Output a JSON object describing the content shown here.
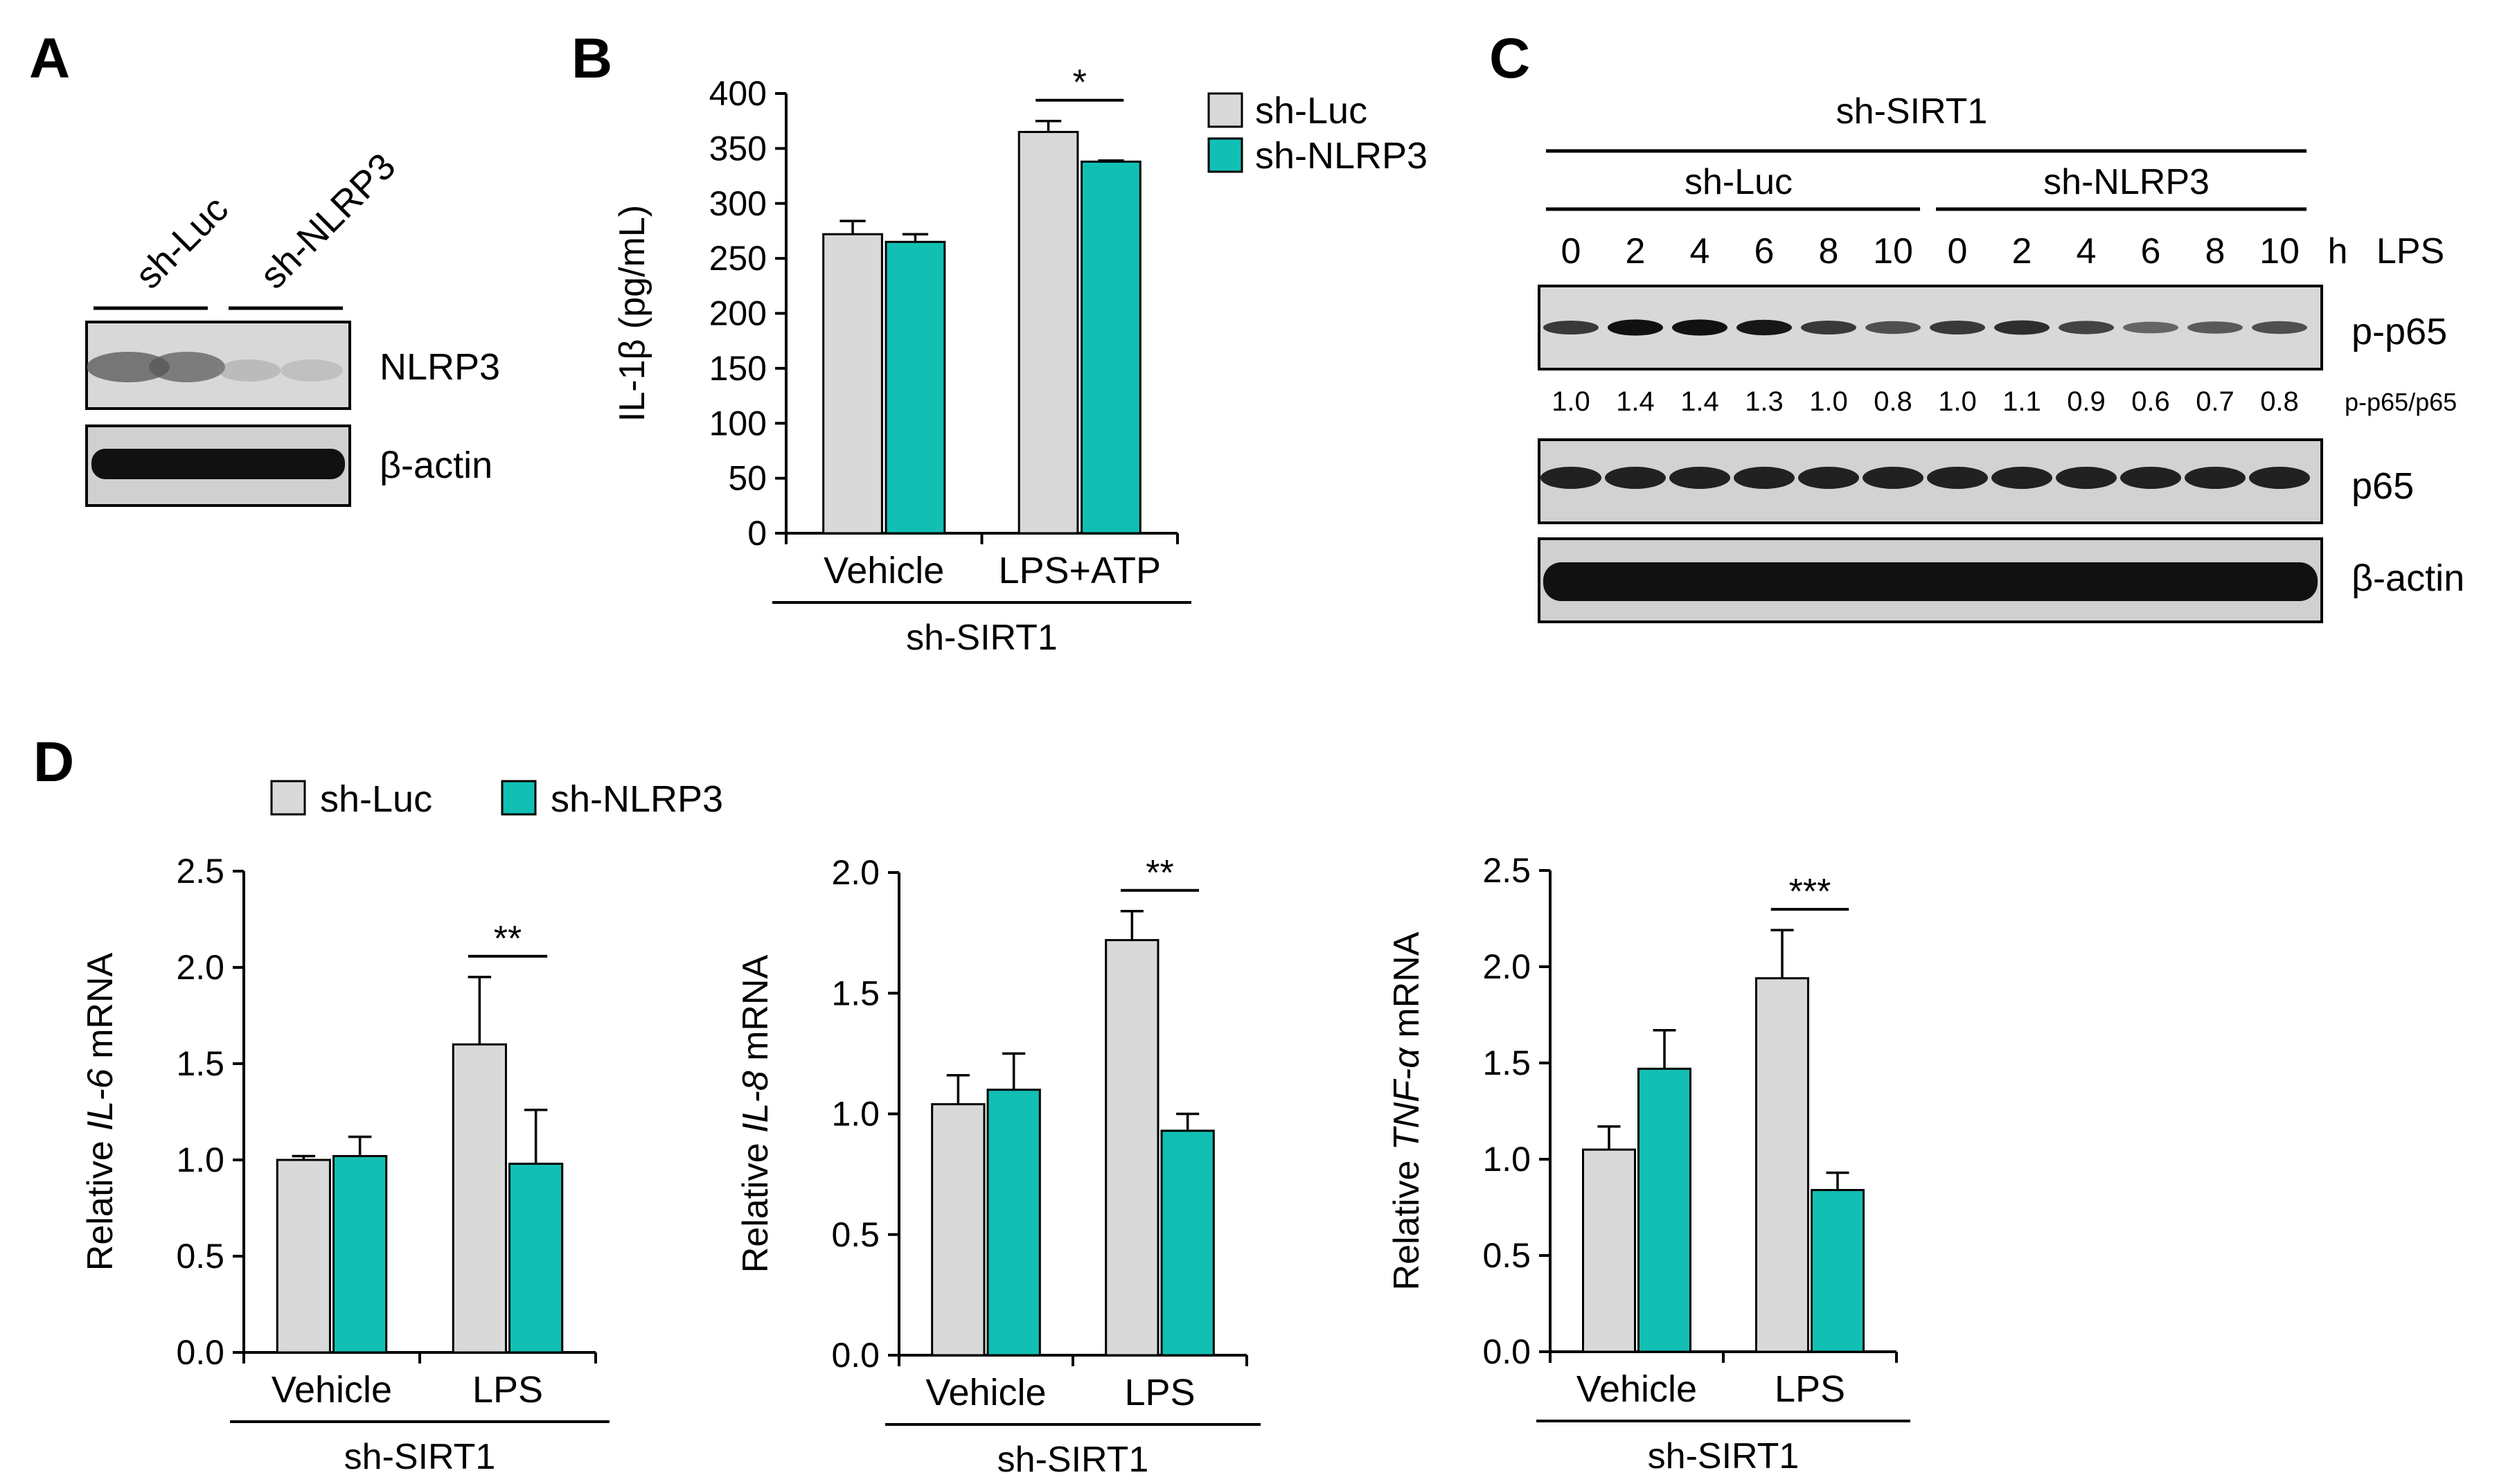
{
  "colors": {
    "luc": "#d9d9d9",
    "nlrp3": "#12bfb3",
    "axis": "#000000"
  },
  "panel_a": {
    "label": "A",
    "lanes": [
      "sh-Luc",
      "sh-NLRP3"
    ],
    "blots": [
      "NLRP3",
      "β-actin"
    ]
  },
  "panel_c": {
    "label": "C",
    "header": "sh-SIRT1",
    "groups": [
      "sh-Luc",
      "sh-NLRP3"
    ],
    "timepoints": [
      "0",
      "2",
      "4",
      "6",
      "8",
      "10",
      "0",
      "2",
      "4",
      "6",
      "8",
      "10"
    ],
    "unit": "h",
    "treatment": "LPS",
    "ratio_label": "p-p65/p65",
    "ratios": [
      "1.0",
      "1.4",
      "1.4",
      "1.3",
      "1.0",
      "0.8",
      "1.0",
      "1.1",
      "0.9",
      "0.6",
      "0.7",
      "0.8"
    ],
    "blots": [
      "p-p65",
      "p65",
      "β-actin"
    ]
  },
  "legend_d": {
    "label": "D",
    "items": [
      "sh-Luc",
      "sh-NLRP3"
    ]
  },
  "chart_data": [
    {
      "id": "B",
      "label": "B",
      "type": "bar",
      "categories": [
        "Vehicle",
        "LPS+ATP"
      ],
      "group_label": "sh-SIRT1",
      "ylabel": "IL-1β (pg/mL)",
      "ylabel_parts": [
        "IL-1β (pg/mL)"
      ],
      "ylim": [
        0,
        400
      ],
      "ticks": [
        0,
        50,
        100,
        150,
        200,
        250,
        300,
        350,
        400
      ],
      "tick_labels": [
        "0",
        "50",
        "100",
        "150",
        "200",
        "250",
        "300",
        "350",
        "400"
      ],
      "series": [
        {
          "name": "sh-Luc",
          "color": "#d9d9d9",
          "values": [
            272,
            365
          ],
          "errors": [
            12,
            10
          ]
        },
        {
          "name": "sh-NLRP3",
          "color": "#12bfb3",
          "values": [
            265,
            338
          ],
          "errors": [
            7,
            1
          ]
        }
      ],
      "significance": [
        {
          "category": 1,
          "label": "*"
        }
      ],
      "legend": [
        "sh-Luc",
        "sh-NLRP3"
      ]
    },
    {
      "id": "D1",
      "type": "bar",
      "categories": [
        "Vehicle",
        "LPS"
      ],
      "group_label": "sh-SIRT1",
      "ylabel": "Relative IL-6 mRNA",
      "ylabel_parts": [
        "Relative ",
        "IL-6",
        " mRNA"
      ],
      "ylim": [
        0,
        2.5
      ],
      "ticks": [
        0,
        0.5,
        1.0,
        1.5,
        2.0,
        2.5
      ],
      "tick_labels": [
        "0.0",
        "0.5",
        "1.0",
        "1.5",
        "2.0",
        "2.5"
      ],
      "series": [
        {
          "name": "sh-Luc",
          "color": "#d9d9d9",
          "values": [
            1.0,
            1.6
          ],
          "errors": [
            0.02,
            0.35
          ]
        },
        {
          "name": "sh-NLRP3",
          "color": "#12bfb3",
          "values": [
            1.02,
            0.98
          ],
          "errors": [
            0.1,
            0.28
          ]
        }
      ],
      "significance": [
        {
          "category": 1,
          "label": "**"
        }
      ]
    },
    {
      "id": "D2",
      "type": "bar",
      "categories": [
        "Vehicle",
        "LPS"
      ],
      "group_label": "sh-SIRT1",
      "ylabel": "Relative IL-8 mRNA",
      "ylabel_parts": [
        "Relative ",
        "IL-8",
        " mRNA"
      ],
      "ylim": [
        0,
        2.0
      ],
      "ticks": [
        0,
        0.5,
        1.0,
        1.5,
        2.0
      ],
      "tick_labels": [
        "0.0",
        "0.5",
        "1.0",
        "1.5",
        "2.0"
      ],
      "series": [
        {
          "name": "sh-Luc",
          "color": "#d9d9d9",
          "values": [
            1.04,
            1.72
          ],
          "errors": [
            0.12,
            0.12
          ]
        },
        {
          "name": "sh-NLRP3",
          "color": "#12bfb3",
          "values": [
            1.1,
            0.93
          ],
          "errors": [
            0.15,
            0.07
          ]
        }
      ],
      "significance": [
        {
          "category": 1,
          "label": "**"
        }
      ]
    },
    {
      "id": "D3",
      "type": "bar",
      "categories": [
        "Vehicle",
        "LPS"
      ],
      "group_label": "sh-SIRT1",
      "ylabel": "Relative TNF-α mRNA",
      "ylabel_parts": [
        "Relative ",
        "TNF-α",
        " mRNA"
      ],
      "ylim": [
        0,
        2.5
      ],
      "ticks": [
        0,
        0.5,
        1.0,
        1.5,
        2.0,
        2.5
      ],
      "tick_labels": [
        "0.0",
        "0.5",
        "1.0",
        "1.5",
        "2.0",
        "2.5"
      ],
      "series": [
        {
          "name": "sh-Luc",
          "color": "#d9d9d9",
          "values": [
            1.05,
            1.94
          ],
          "errors": [
            0.12,
            0.25
          ]
        },
        {
          "name": "sh-NLRP3",
          "color": "#12bfb3",
          "values": [
            1.47,
            0.84
          ],
          "errors": [
            0.2,
            0.09
          ]
        }
      ],
      "significance": [
        {
          "category": 1,
          "label": "***"
        }
      ]
    }
  ]
}
